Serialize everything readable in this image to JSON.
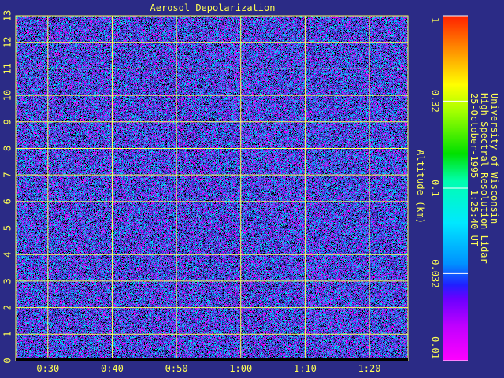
{
  "chart_data": {
    "type": "heatmap",
    "title": "Aerosol Depolarization",
    "ylabel": "Altitude (km)",
    "xlim": [
      "0:25",
      "1:26"
    ],
    "ylim": [
      0,
      13
    ],
    "x_ticks": [
      "0:30",
      "0:40",
      "0:50",
      "1:00",
      "1:10",
      "1:20"
    ],
    "y_ticks": [
      "0",
      "1",
      "2",
      "3",
      "4",
      "5",
      "6",
      "7",
      "8",
      "9",
      "10",
      "11",
      "12",
      "13"
    ],
    "grid": true,
    "colorbar": {
      "scale": "log",
      "range": [
        0.01,
        1
      ],
      "ticks": [
        "0.01",
        "0.032",
        "0.1",
        "0.32",
        "1"
      ]
    },
    "description_of_values": "noise-dominated field across all altitudes and times"
  },
  "credits": {
    "line1": "University of Wisconsin",
    "line2": "High Spectral Resolution Lidar",
    "line3": "25-October-1995  1:25:40 UT"
  },
  "colors": {
    "background": "#2b2b86",
    "text": "#ffff55",
    "grid": "#ffff55"
  }
}
